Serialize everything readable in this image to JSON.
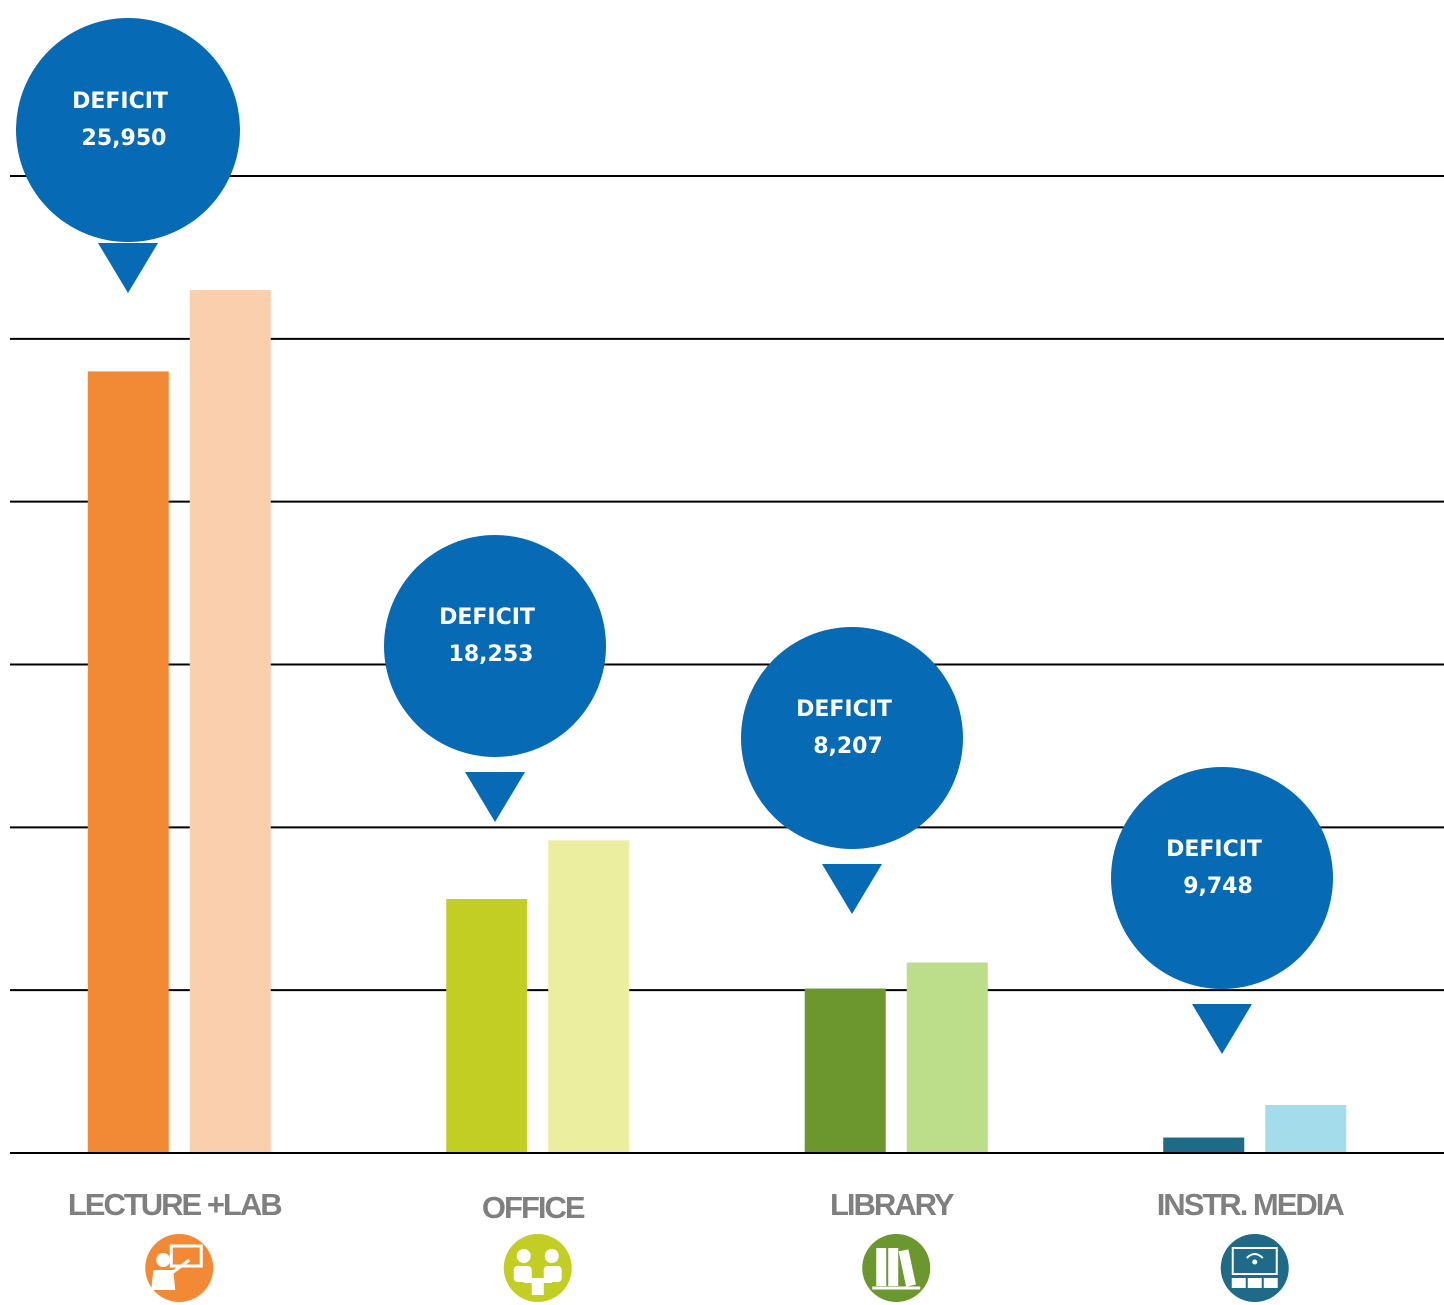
{
  "chart_data": {
    "type": "bar",
    "title": "",
    "xlabel": "",
    "ylabel": "",
    "ylim": [
      0,
      60000
    ],
    "grid": true,
    "gridlines": [
      0,
      10000,
      20000,
      30000,
      40000,
      50000,
      60000
    ],
    "categories": [
      "LECTURE +LAB",
      "OFFICE",
      "LIBRARY",
      "INSTR. MEDIA"
    ],
    "icons": [
      "lecture-icon",
      "office-meeting-icon",
      "library-books-icon",
      "media-monitor-icon"
    ],
    "series": [
      {
        "colors": [
          "#f28a35",
          "#c2ce23",
          "#6c962e",
          "#1f6a87"
        ],
        "values": [
          48000,
          15600,
          10100,
          950
        ]
      },
      {
        "colors": [
          "#f9cfae",
          "#ebee9f",
          "#bcdd8a",
          "#a5dcec"
        ],
        "values": [
          53000,
          19200,
          11700,
          2950
        ]
      }
    ],
    "callouts": [
      {
        "label": "DEFICIT",
        "value": "25,950"
      },
      {
        "label": "DEFICIT",
        "value": "18,253"
      },
      {
        "label": "DEFICIT",
        "value": "8,207"
      },
      {
        "label": "DEFICIT",
        "value": "9,748"
      }
    ],
    "callout_color": "#066ab4"
  }
}
